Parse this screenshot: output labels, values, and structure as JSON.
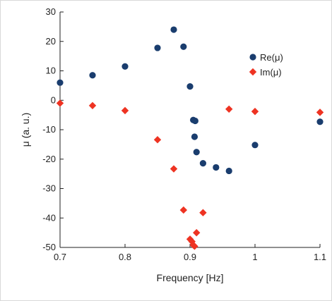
{
  "chart_data": {
    "type": "scatter",
    "xlabel": "Frequency [Hz]",
    "ylabel": "μ (a. u.)",
    "xlim": [
      0.7,
      1.1
    ],
    "ylim": [
      -50,
      30
    ],
    "xticks": [
      "0.7",
      "0.8",
      "0.9",
      "1",
      "1.1"
    ],
    "xtick_values": [
      0.7,
      0.8,
      0.9,
      1.0,
      1.1
    ],
    "yticks": [
      "30",
      "20",
      "10",
      "0",
      "-10",
      "-20",
      "-30",
      "-40",
      "-50"
    ],
    "ytick_values": [
      30,
      20,
      10,
      0,
      -10,
      -20,
      -30,
      -40,
      -50
    ],
    "grid": false,
    "legend_position": "top-right",
    "series": [
      {
        "name": "Re(μ)",
        "marker": "circle",
        "color": "#1a3d6e",
        "points": [
          [
            0.7,
            6.0
          ],
          [
            0.75,
            8.5
          ],
          [
            0.8,
            11.5
          ],
          [
            0.85,
            17.8
          ],
          [
            0.875,
            24.0
          ],
          [
            0.89,
            18.2
          ],
          [
            0.9,
            4.7
          ],
          [
            0.905,
            -6.7
          ],
          [
            0.908,
            -7.0
          ],
          [
            0.907,
            -12.4
          ],
          [
            0.91,
            -17.6
          ],
          [
            0.92,
            -21.4
          ],
          [
            0.94,
            -22.8
          ],
          [
            0.96,
            -24.0
          ],
          [
            1.0,
            -15.2
          ],
          [
            1.1,
            -7.3
          ]
        ]
      },
      {
        "name": "Im(μ)",
        "marker": "diamond",
        "color": "#ee3322",
        "points": [
          [
            0.7,
            -1.0
          ],
          [
            0.75,
            -1.8
          ],
          [
            0.8,
            -3.5
          ],
          [
            0.85,
            -13.4
          ],
          [
            0.875,
            -23.3
          ],
          [
            0.89,
            -37.3
          ],
          [
            0.9,
            -47.2
          ],
          [
            0.903,
            -48.0
          ],
          [
            0.905,
            -49.2
          ],
          [
            0.907,
            -49.6
          ],
          [
            0.91,
            -45.0
          ],
          [
            0.92,
            -38.2
          ],
          [
            0.96,
            -3.0
          ],
          [
            1.0,
            -3.8
          ],
          [
            1.1,
            -4.1
          ]
        ]
      }
    ]
  }
}
